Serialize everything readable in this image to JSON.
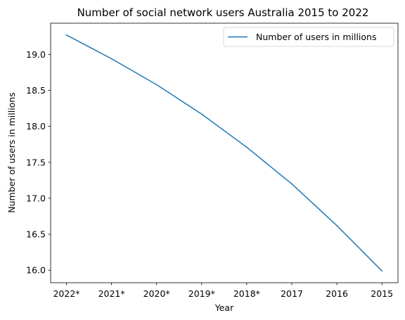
{
  "chart_data": {
    "type": "line",
    "title": "Number of social network users Australia 2015 to 2022",
    "xlabel": "Year",
    "ylabel": "Number of users in millions",
    "categories": [
      "2022*",
      "2021*",
      "2020*",
      "2019*",
      "2018*",
      "2017",
      "2016",
      "2015"
    ],
    "series": [
      {
        "name": "Number of users in millions",
        "values": [
          19.27,
          18.94,
          18.58,
          18.17,
          17.71,
          17.2,
          16.62,
          15.99
        ],
        "color": "#1f77b4"
      }
    ],
    "yticks": [
      16.0,
      16.5,
      17.0,
      17.5,
      18.0,
      18.5,
      19.0
    ],
    "ytick_labels": [
      "16.0",
      "16.5",
      "17.0",
      "17.5",
      "18.0",
      "18.5",
      "19.0"
    ],
    "ylim": [
      15.826,
      19.434
    ],
    "grid": false,
    "legend_position": "upper-right"
  }
}
